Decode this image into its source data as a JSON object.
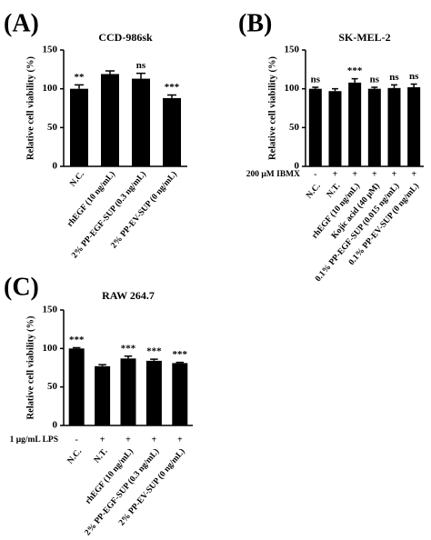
{
  "chart_data": [
    {
      "type": "bar",
      "panel": "(A)",
      "title": "CCD-986sk",
      "y_label": "Relative cell viability (%)",
      "categories": [
        "N.C.",
        "rhEGF (10 ng/mL)",
        "2% PP-EGF-SUP (0.3 ng/mL)",
        "2% PP-EV-SUP (0 ng/mL)"
      ],
      "values": [
        100,
        119,
        113,
        88
      ],
      "errors": [
        5,
        4,
        7,
        4
      ],
      "significance": [
        "**",
        null,
        "ns",
        "***"
      ],
      "color": "#000000",
      "ylim": [
        0,
        150
      ],
      "yticks": [
        0,
        50,
        100,
        150
      ]
    },
    {
      "type": "bar",
      "panel": "(B)",
      "title": "SK-MEL-2",
      "y_label": "Relative cell viability (%)",
      "categories": [
        "N.C.",
        "N.T.",
        "rhEGF (10 ng/mL)",
        "Kojic acid (40 μM)",
        "0.1% PP-EGF-SUP (0.015 ng/mL)",
        "0.1% PP-EV-SUP (0 ng/mL)"
      ],
      "values": [
        100,
        97,
        108,
        100,
        101,
        102
      ],
      "errors": [
        2,
        3,
        5,
        2,
        4,
        4
      ],
      "significance": [
        "ns",
        null,
        "***",
        "ns",
        "ns",
        "ns"
      ],
      "treatment": {
        "label": "200 μM IBMX",
        "signs": [
          "-",
          "+",
          "+",
          "+",
          "+",
          "+"
        ]
      },
      "color": "#000000",
      "ylim": [
        0,
        150
      ],
      "yticks": [
        0,
        50,
        100,
        150
      ]
    },
    {
      "type": "bar",
      "panel": "(C)",
      "title": "RAW 264.7",
      "y_label": "Relative cell viability (%)",
      "categories": [
        "N.C.",
        "N.T.",
        "rhEGF (10 ng/mL)",
        "2% PP-EGF-SUP (0.3 ng/mL)",
        "2% PP-EV-SUP (0 ng/mL)"
      ],
      "values": [
        100,
        77,
        87,
        84,
        81
      ],
      "errors": [
        1,
        2,
        3,
        2,
        1
      ],
      "significance": [
        "***",
        null,
        "***",
        "***",
        "***"
      ],
      "treatment": {
        "label": "1 μg/mL LPS",
        "signs": [
          "-",
          "+",
          "+",
          "+",
          "+"
        ]
      },
      "color": "#000000",
      "ylim": [
        0,
        150
      ],
      "yticks": [
        0,
        50,
        100,
        150
      ]
    }
  ]
}
